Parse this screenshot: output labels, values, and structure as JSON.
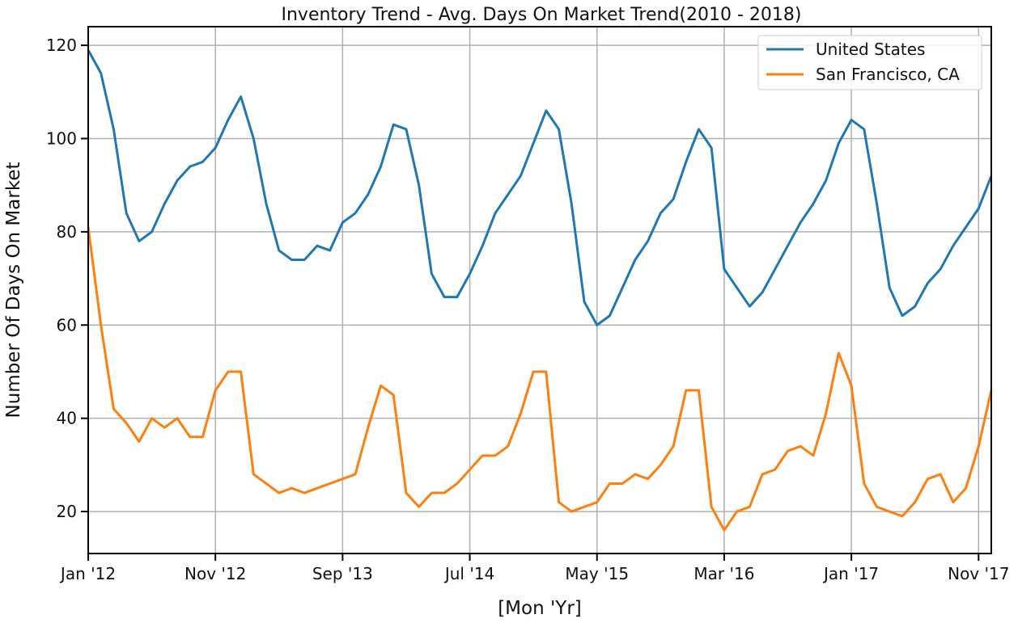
{
  "chart_data": {
    "type": "line",
    "title": "Inventory Trend - Avg. Days On Market Trend(2010 - 2018)",
    "xlabel": "[Mon 'Yr]",
    "ylabel": "Number Of Days On Market",
    "x_tick_labels": [
      "Jan '12",
      "Nov '12",
      "Sep '13",
      "Jul '14",
      "May '15",
      "Mar '16",
      "Jan '17",
      "Nov '17"
    ],
    "x_tick_month_index": [
      0,
      10,
      20,
      30,
      40,
      50,
      60,
      70
    ],
    "y_ticks": [
      20,
      40,
      60,
      80,
      100,
      120
    ],
    "ylim": [
      11,
      124
    ],
    "x_month_range": [
      0,
      71
    ],
    "grid": true,
    "legend_position": "top-right",
    "series": [
      {
        "name": "United States",
        "color": "#1f77b4",
        "values": [
          119,
          114,
          102,
          84,
          78,
          80,
          86,
          91,
          94,
          95,
          98,
          104,
          109,
          100,
          86,
          76,
          74,
          74,
          77,
          76,
          82,
          84,
          88,
          94,
          103,
          102,
          90,
          71,
          66,
          66,
          71,
          77,
          84,
          88,
          92,
          99,
          106,
          102,
          86,
          65,
          60,
          62,
          68,
          74,
          78,
          84,
          87,
          95,
          102,
          98,
          72,
          68,
          64,
          67,
          72,
          77,
          82,
          86,
          91,
          99,
          104,
          102,
          86,
          68,
          62,
          64,
          69,
          72,
          77,
          81,
          85,
          92
        ]
      },
      {
        "name": "San Francisco, CA",
        "color": "#ff7f0e",
        "values": [
          81,
          60,
          42,
          39,
          35,
          40,
          38,
          40,
          36,
          36,
          46,
          50,
          50,
          28,
          26,
          24,
          25,
          24,
          25,
          26,
          27,
          28,
          38,
          47,
          45,
          24,
          21,
          24,
          24,
          26,
          29,
          32,
          32,
          34,
          41,
          50,
          50,
          22,
          20,
          21,
          22,
          26,
          26,
          28,
          27,
          30,
          34,
          46,
          46,
          21,
          16,
          20,
          21,
          28,
          29,
          33,
          34,
          32,
          41,
          54,
          47,
          26,
          21,
          20,
          19,
          22,
          27,
          28,
          22,
          25,
          34,
          46
        ]
      }
    ]
  }
}
